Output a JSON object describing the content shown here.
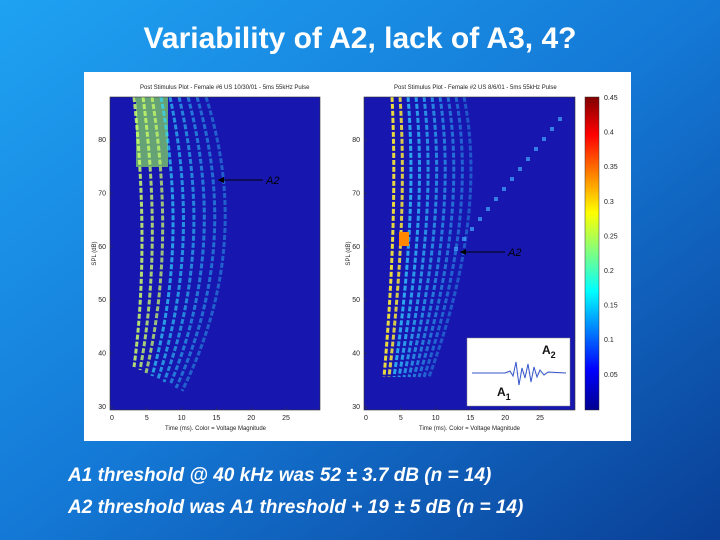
{
  "title": "Variability of A2, lack of A3, 4?",
  "plots": [
    {
      "title": "Post Stimulus Plot - Female #6 US 10/30/01 - 5ms 55kHz Pulse",
      "ylabel": "SPL (dB)",
      "xlabel": "Time (ms). Color = Voltage Magnitude",
      "xticks": [
        "0",
        "5",
        "10",
        "15",
        "20",
        "25"
      ],
      "yticks": [
        "80",
        "70",
        "60",
        "50",
        "40",
        "30"
      ],
      "annotation": "A2"
    },
    {
      "title": "Post Stimulus Plot - Female #2 US 8/6/01 - 5ms 55kHz Pulse",
      "ylabel": "SPL (dB)",
      "xlabel": "Time (ms). Color = Voltage Magnitude",
      "xticks": [
        "0",
        "5",
        "10",
        "15",
        "20",
        "25"
      ],
      "yticks": [
        "80",
        "70",
        "60",
        "50",
        "40",
        "30"
      ],
      "annotation": "A2"
    }
  ],
  "colorbar": [
    "0.45",
    "0.4",
    "0.35",
    "0.3",
    "0.25",
    "0.2",
    "0.15",
    "0.1",
    "0.05"
  ],
  "inset": {
    "top": {
      "base": "A",
      "sub": "2"
    },
    "bottom": {
      "base": "A",
      "sub": "1"
    }
  },
  "notes": [
    "A1 threshold @ 40 kHz was 52 ± 3.7 dB (n = 14)",
    "A2 threshold was A1 threshold + 19 ± 5 dB (n = 14)"
  ]
}
